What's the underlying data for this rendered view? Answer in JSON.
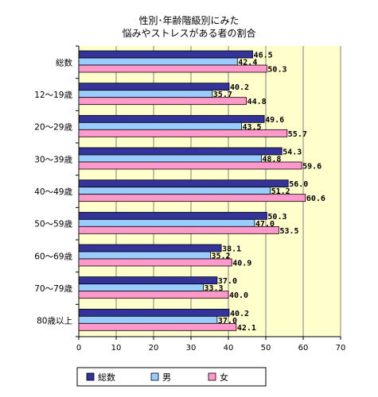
{
  "chart_data": {
    "type": "bar",
    "orientation": "horizontal",
    "title_lines": [
      "性別･年齢階級別にみた",
      "悩みやストレスがある者の割合"
    ],
    "categories": [
      "総数",
      "12～19歳",
      "20～29歳",
      "30～39歳",
      "40～49歳",
      "50～59歳",
      "60～69歳",
      "70～79歳",
      "80歳以上"
    ],
    "series": [
      {
        "name": "総数",
        "color": "#333399",
        "values": [
          46.5,
          40.2,
          49.6,
          54.3,
          56.0,
          50.3,
          38.1,
          37.0,
          40.2
        ]
      },
      {
        "name": "男",
        "color": "#99ccff",
        "values": [
          42.4,
          35.7,
          43.5,
          48.8,
          51.2,
          47.0,
          35.2,
          33.3,
          37.0
        ]
      },
      {
        "name": "女",
        "color": "#ff99cc",
        "values": [
          50.3,
          44.8,
          55.7,
          59.6,
          60.6,
          53.5,
          40.9,
          40.0,
          42.1
        ]
      }
    ],
    "xlim": [
      0,
      70
    ],
    "xticks": [
      0,
      10,
      20,
      30,
      40,
      50,
      60,
      70
    ],
    "value_labels": [
      [
        "46.5",
        "40.2",
        "49.6",
        "54.3",
        "56.0",
        "50.3",
        "38.1",
        "37.0",
        "40.2"
      ],
      [
        "42.4",
        "35.7",
        "43.5",
        "48.8",
        "51.2",
        "47.0",
        "35.2",
        "33.3",
        "37.0"
      ],
      [
        "50.3",
        "44.8",
        "55.7",
        "59.6",
        "60.6",
        "53.5",
        "40.9",
        "40.0",
        "42.1"
      ]
    ],
    "plot_background": "#ffffcc",
    "legend_position": "bottom"
  }
}
